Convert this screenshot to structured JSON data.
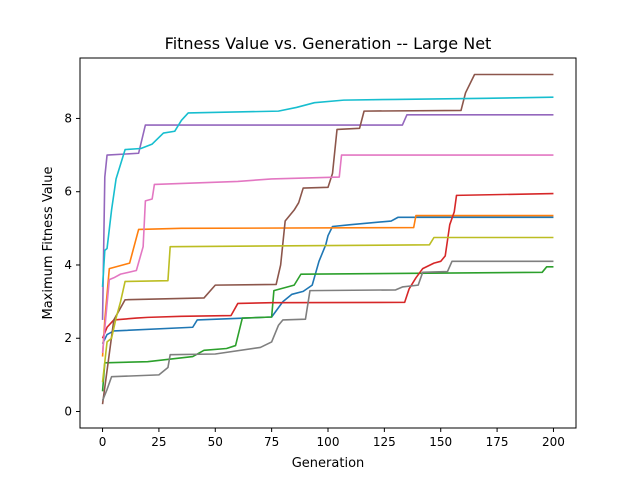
{
  "chart_data": {
    "type": "line",
    "title": "Fitness Value vs. Generation -- Large Net",
    "xlabel": "Generation",
    "ylabel": "Maximum Fitness Value",
    "xlim": [
      -10,
      210
    ],
    "ylim": [
      -0.45,
      9.65
    ],
    "xticks": [
      0,
      25,
      50,
      75,
      100,
      125,
      150,
      175,
      200
    ],
    "yticks": [
      0,
      2,
      4,
      6,
      8
    ],
    "grid": false,
    "legend": "none",
    "series": [
      {
        "color": "#1f77b4",
        "points": [
          [
            0,
            1.85
          ],
          [
            2,
            2.1
          ],
          [
            5,
            2.2
          ],
          [
            40,
            2.3
          ],
          [
            42,
            2.5
          ],
          [
            75,
            2.58
          ],
          [
            80,
            3.0
          ],
          [
            84,
            3.2
          ],
          [
            89,
            3.28
          ],
          [
            93,
            3.45
          ],
          [
            96,
            4.1
          ],
          [
            99,
            4.55
          ],
          [
            100,
            4.8
          ],
          [
            102,
            5.05
          ],
          [
            110,
            5.1
          ],
          [
            128,
            5.2
          ],
          [
            131,
            5.3
          ],
          [
            200,
            5.3
          ]
        ]
      },
      {
        "color": "#ff7f0e",
        "points": [
          [
            0,
            1.5
          ],
          [
            1,
            2.5
          ],
          [
            3,
            3.9
          ],
          [
            12,
            4.05
          ],
          [
            16,
            4.97
          ],
          [
            35,
            5.0
          ],
          [
            138,
            5.02
          ],
          [
            139,
            5.35
          ],
          [
            200,
            5.35
          ]
        ]
      },
      {
        "color": "#2ca02c",
        "points": [
          [
            0,
            0.55
          ],
          [
            1,
            1.33
          ],
          [
            20,
            1.36
          ],
          [
            40,
            1.5
          ],
          [
            45,
            1.67
          ],
          [
            55,
            1.72
          ],
          [
            59,
            1.8
          ],
          [
            62,
            2.55
          ],
          [
            75,
            2.58
          ],
          [
            76,
            3.3
          ],
          [
            85,
            3.45
          ],
          [
            88,
            3.75
          ],
          [
            195,
            3.8
          ],
          [
            197,
            3.95
          ],
          [
            200,
            3.95
          ]
        ]
      },
      {
        "color": "#d62728",
        "points": [
          [
            0,
            2.0
          ],
          [
            2,
            2.3
          ],
          [
            5,
            2.5
          ],
          [
            15,
            2.55
          ],
          [
            20,
            2.57
          ],
          [
            35,
            2.6
          ],
          [
            57,
            2.62
          ],
          [
            60,
            2.95
          ],
          [
            75,
            2.97
          ],
          [
            134,
            2.98
          ],
          [
            136,
            3.35
          ],
          [
            139,
            3.65
          ],
          [
            142,
            3.9
          ],
          [
            147,
            4.05
          ],
          [
            150,
            4.1
          ],
          [
            152,
            4.25
          ],
          [
            154,
            5.1
          ],
          [
            156,
            5.45
          ],
          [
            157,
            5.9
          ],
          [
            200,
            5.95
          ]
        ]
      },
      {
        "color": "#9467bd",
        "points": [
          [
            0,
            2.5
          ],
          [
            1,
            6.4
          ],
          [
            2,
            7.0
          ],
          [
            16,
            7.05
          ],
          [
            19,
            7.82
          ],
          [
            133,
            7.82
          ],
          [
            135,
            8.1
          ],
          [
            200,
            8.1
          ]
        ]
      },
      {
        "color": "#8c564b",
        "points": [
          [
            0,
            0.2
          ],
          [
            5,
            2.5
          ],
          [
            10,
            3.05
          ],
          [
            45,
            3.1
          ],
          [
            50,
            3.45
          ],
          [
            77,
            3.47
          ],
          [
            79,
            4.0
          ],
          [
            81,
            5.2
          ],
          [
            85,
            5.5
          ],
          [
            87,
            5.7
          ],
          [
            89,
            6.1
          ],
          [
            100,
            6.12
          ],
          [
            102,
            6.5
          ],
          [
            104,
            7.7
          ],
          [
            114,
            7.73
          ],
          [
            116,
            8.2
          ],
          [
            159,
            8.22
          ],
          [
            161,
            8.7
          ],
          [
            165,
            9.2
          ],
          [
            200,
            9.2
          ]
        ]
      },
      {
        "color": "#e377c2",
        "points": [
          [
            0,
            1.6
          ],
          [
            3,
            3.6
          ],
          [
            5,
            3.65
          ],
          [
            8,
            3.75
          ],
          [
            15,
            3.85
          ],
          [
            18,
            4.5
          ],
          [
            19,
            5.75
          ],
          [
            22,
            5.8
          ],
          [
            23,
            6.2
          ],
          [
            60,
            6.28
          ],
          [
            75,
            6.35
          ],
          [
            105,
            6.4
          ],
          [
            106,
            7.0
          ],
          [
            200,
            7.0
          ]
        ]
      },
      {
        "color": "#7f7f7f",
        "points": [
          [
            0,
            0.3
          ],
          [
            2,
            0.6
          ],
          [
            4,
            0.95
          ],
          [
            25,
            1.0
          ],
          [
            29,
            1.2
          ],
          [
            30,
            1.55
          ],
          [
            50,
            1.57
          ],
          [
            70,
            1.75
          ],
          [
            75,
            1.9
          ],
          [
            78,
            2.35
          ],
          [
            80,
            2.5
          ],
          [
            90,
            2.52
          ],
          [
            92,
            3.3
          ],
          [
            130,
            3.32
          ],
          [
            133,
            3.4
          ],
          [
            140,
            3.45
          ],
          [
            142,
            3.8
          ],
          [
            153,
            3.82
          ],
          [
            155,
            4.1
          ],
          [
            200,
            4.1
          ]
        ]
      },
      {
        "color": "#bcbd22",
        "points": [
          [
            0,
            0.8
          ],
          [
            2,
            1.9
          ],
          [
            4,
            2.0
          ],
          [
            6,
            2.55
          ],
          [
            8,
            3.0
          ],
          [
            10,
            3.55
          ],
          [
            29,
            3.57
          ],
          [
            30,
            4.5
          ],
          [
            75,
            4.52
          ],
          [
            145,
            4.55
          ],
          [
            147,
            4.75
          ],
          [
            200,
            4.75
          ]
        ]
      },
      {
        "color": "#17becf",
        "points": [
          [
            0,
            3.4
          ],
          [
            1,
            4.4
          ],
          [
            2,
            4.45
          ],
          [
            4,
            5.5
          ],
          [
            6,
            6.35
          ],
          [
            8,
            6.75
          ],
          [
            10,
            7.15
          ],
          [
            17,
            7.18
          ],
          [
            22,
            7.3
          ],
          [
            27,
            7.6
          ],
          [
            32,
            7.65
          ],
          [
            35,
            7.95
          ],
          [
            38,
            8.15
          ],
          [
            78,
            8.2
          ],
          [
            86,
            8.3
          ],
          [
            94,
            8.43
          ],
          [
            107,
            8.5
          ],
          [
            130,
            8.52
          ],
          [
            170,
            8.55
          ],
          [
            200,
            8.58
          ]
        ]
      }
    ]
  }
}
